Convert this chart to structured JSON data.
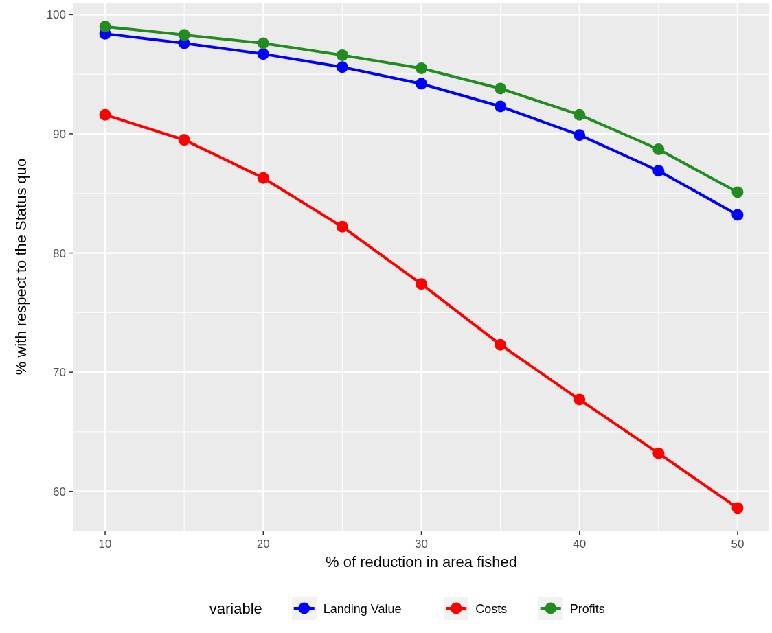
{
  "chart_data": {
    "type": "line",
    "xlabel": "% of reduction in area fished",
    "ylabel": "% with respect to the Status quo",
    "legend_title": "variable",
    "legend": "bottom",
    "grid": true,
    "marker": "circle",
    "line_style": "solid",
    "x": [
      10,
      15,
      20,
      25,
      30,
      35,
      40,
      45,
      50
    ],
    "xlim": [
      8,
      52
    ],
    "xticks": [
      10,
      20,
      30,
      40,
      50
    ],
    "ylim": [
      56.7,
      101
    ],
    "yticks": [
      60,
      70,
      80,
      90,
      100
    ],
    "series": [
      {
        "name": "Landing Value",
        "color": "#0000ff",
        "values": [
          98.4,
          97.6,
          96.7,
          95.6,
          94.2,
          92.3,
          89.9,
          86.9,
          83.2
        ]
      },
      {
        "name": "Costs",
        "color": "#ff0000",
        "values": [
          91.6,
          89.5,
          86.3,
          82.2,
          77.4,
          72.3,
          67.7,
          63.2,
          58.6
        ]
      },
      {
        "name": "Profits",
        "color": "#228b22",
        "values": [
          99.0,
          98.3,
          97.6,
          96.6,
          95.5,
          93.8,
          91.6,
          88.7,
          85.1
        ]
      }
    ]
  }
}
